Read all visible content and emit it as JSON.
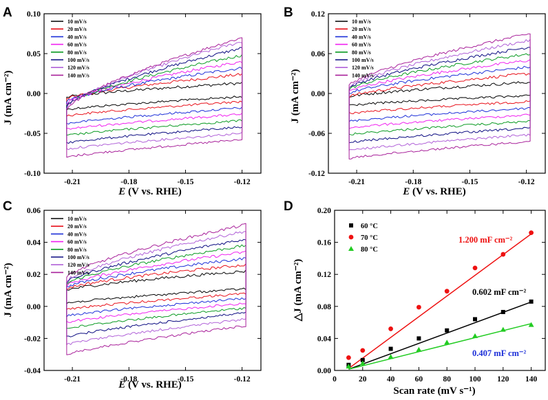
{
  "chart_data": [
    {
      "panel": "A",
      "type": "line",
      "xlabel_italic": "E",
      "xlabel_rest": " (V vs. RHE)",
      "ylabel": "J (mA cm⁻²)",
      "xlim": [
        -0.225,
        -0.11
      ],
      "ylim": [
        -0.1,
        0.1
      ],
      "xticks": [
        "-0.21",
        "-0.18",
        "-0.15",
        "-0.12"
      ],
      "yticks": [
        "-0.10",
        "-0.05",
        "0.00",
        "0.05",
        "0.10"
      ],
      "xtick_values": [
        -0.21,
        -0.18,
        -0.15,
        -0.12
      ],
      "ytick_values": [
        -0.1,
        -0.05,
        0.0,
        0.05,
        0.1
      ],
      "scan_range": [
        -0.213,
        -0.12
      ],
      "legend": [
        "10 mV/s",
        "20 mV/s",
        "40 mV/s",
        "60 mV/s",
        "80 mV/s",
        "100 mV/s",
        "120 mV/s",
        "140 mV/s"
      ],
      "colors": [
        "#000000",
        "#e8101a",
        "#1c2fd8",
        "#f020f0",
        "#0a9a22",
        "#0a0a80",
        "#b060d8",
        "#a8209a"
      ],
      "series": [
        {
          "name": "10 mV/s",
          "upper": [
            -0.005,
            0.013
          ],
          "lower": [
            -0.02,
            -0.004
          ]
        },
        {
          "name": "20 mV/s",
          "upper": [
            -0.007,
            0.024
          ],
          "lower": [
            -0.028,
            -0.01
          ]
        },
        {
          "name": "40 mV/s",
          "upper": [
            -0.01,
            0.032
          ],
          "lower": [
            -0.038,
            -0.018
          ]
        },
        {
          "name": "60 mV/s",
          "upper": [
            -0.012,
            0.04
          ],
          "lower": [
            -0.045,
            -0.026
          ]
        },
        {
          "name": "80 mV/s",
          "upper": [
            -0.014,
            0.048
          ],
          "lower": [
            -0.053,
            -0.034
          ]
        },
        {
          "name": "100 mV/s",
          "upper": [
            -0.016,
            0.057
          ],
          "lower": [
            -0.062,
            -0.042
          ]
        },
        {
          "name": "120 mV/s",
          "upper": [
            -0.018,
            0.065
          ],
          "lower": [
            -0.07,
            -0.05
          ]
        },
        {
          "name": "140 mV/s",
          "upper": [
            -0.02,
            0.07
          ],
          "lower": [
            -0.08,
            -0.058
          ]
        }
      ]
    },
    {
      "panel": "B",
      "type": "line",
      "xlabel_italic": "E",
      "xlabel_rest": " (V vs. RHE)",
      "ylabel": "J (mA cm⁻²)",
      "xlim": [
        -0.225,
        -0.11
      ],
      "ylim": [
        -0.12,
        0.12
      ],
      "xticks": [
        "-0.21",
        "-0.18",
        "-0.15",
        "-0.12"
      ],
      "yticks": [
        "-0.12",
        "-0.06",
        "0.00",
        "0.06",
        "0.12"
      ],
      "xtick_values": [
        -0.21,
        -0.18,
        -0.15,
        -0.12
      ],
      "ytick_values": [
        -0.12,
        -0.06,
        0.0,
        0.06,
        0.12
      ],
      "scan_range": [
        -0.214,
        -0.118
      ],
      "legend": [
        "10 mV/s",
        "20 mV/s",
        "40 mV/s",
        "60 mV/s",
        "80 mV/s",
        "100 mV/s",
        "120 mV/s",
        "140 mV/s"
      ],
      "colors": [
        "#000000",
        "#e8101a",
        "#1c2fd8",
        "#f020f0",
        "#0a9a22",
        "#0a0a80",
        "#b060d8",
        "#a8209a"
      ],
      "series": [
        {
          "name": "10 mV/s",
          "upper": [
            -0.005,
            0.017
          ],
          "lower": [
            -0.018,
            -0.003
          ]
        },
        {
          "name": "20 mV/s",
          "upper": [
            -0.005,
            0.03
          ],
          "lower": [
            -0.03,
            -0.012
          ]
        },
        {
          "name": "40 mV/s",
          "upper": [
            0.0,
            0.04
          ],
          "lower": [
            -0.042,
            -0.022
          ]
        },
        {
          "name": "60 mV/s",
          "upper": [
            0.003,
            0.05
          ],
          "lower": [
            -0.052,
            -0.032
          ]
        },
        {
          "name": "80 mV/s",
          "upper": [
            0.006,
            0.06
          ],
          "lower": [
            -0.062,
            -0.042
          ]
        },
        {
          "name": "100 mV/s",
          "upper": [
            0.008,
            0.07
          ],
          "lower": [
            -0.074,
            -0.052
          ]
        },
        {
          "name": "120 mV/s",
          "upper": [
            0.01,
            0.08
          ],
          "lower": [
            -0.086,
            -0.062
          ]
        },
        {
          "name": "140 mV/s",
          "upper": [
            0.012,
            0.09
          ],
          "lower": [
            -0.098,
            -0.072
          ]
        }
      ]
    },
    {
      "panel": "C",
      "type": "line",
      "xlabel_italic": "E",
      "xlabel_rest": " (V vs. RHE)",
      "ylabel": "J (mA cm⁻²)",
      "xlim": [
        -0.225,
        -0.11
      ],
      "ylim": [
        -0.04,
        0.06
      ],
      "xticks": [
        "-0.21",
        "-0.18",
        "-0.15",
        "-0.12"
      ],
      "yticks": [
        "-0.04",
        "-0.02",
        "0.00",
        "0.02",
        "0.04",
        "0.06"
      ],
      "xtick_values": [
        -0.21,
        -0.18,
        -0.15,
        -0.12
      ],
      "ytick_values": [
        -0.04,
        -0.02,
        0.0,
        0.02,
        0.04,
        0.06
      ],
      "scan_range": [
        -0.213,
        -0.118
      ],
      "legend": [
        "10 mV/s",
        "20 mV/s",
        "40 mV/s",
        "60 mV/s",
        "80 mV/s",
        "100 mV/s",
        "120 mV/s",
        "140 mV/s"
      ],
      "colors": [
        "#000000",
        "#e8101a",
        "#1c2fd8",
        "#f020f0",
        "#0a9a22",
        "#0a0a80",
        "#b060d8",
        "#a8209a"
      ],
      "series": [
        {
          "name": "10 mV/s",
          "upper": [
            0.01,
            0.022
          ],
          "lower": [
            0.002,
            0.011
          ]
        },
        {
          "name": "20 mV/s",
          "upper": [
            0.011,
            0.026
          ],
          "lower": [
            -0.002,
            0.008
          ]
        },
        {
          "name": "40 mV/s",
          "upper": [
            0.012,
            0.03
          ],
          "lower": [
            -0.006,
            0.005
          ]
        },
        {
          "name": "60 mV/s",
          "upper": [
            0.013,
            0.034
          ],
          "lower": [
            -0.01,
            0.002
          ]
        },
        {
          "name": "80 mV/s",
          "upper": [
            0.014,
            0.038
          ],
          "lower": [
            -0.014,
            -0.001
          ]
        },
        {
          "name": "100 mV/s",
          "upper": [
            0.015,
            0.042
          ],
          "lower": [
            -0.019,
            -0.004
          ]
        },
        {
          "name": "120 mV/s",
          "upper": [
            0.016,
            0.047
          ],
          "lower": [
            -0.024,
            -0.008
          ]
        },
        {
          "name": "140 mV/s",
          "upper": [
            0.018,
            0.051
          ],
          "lower": [
            -0.03,
            -0.012
          ]
        }
      ]
    },
    {
      "panel": "D",
      "type": "scatter",
      "xlabel": "Scan rate (mV s⁻¹)",
      "ylabel": "△J (mA cm⁻²)",
      "xlim": [
        0,
        150
      ],
      "ylim": [
        0.0,
        0.2
      ],
      "xticks": [
        "0",
        "20",
        "40",
        "60",
        "80",
        "100",
        "120",
        "140"
      ],
      "yticks": [
        "0.00",
        "0.04",
        "0.08",
        "0.12",
        "0.16",
        "0.20"
      ],
      "xtick_values": [
        0,
        20,
        40,
        60,
        80,
        100,
        120,
        140
      ],
      "ytick_values": [
        0.0,
        0.04,
        0.08,
        0.12,
        0.16,
        0.2
      ],
      "x": [
        10,
        20,
        40,
        60,
        80,
        100,
        120,
        140
      ],
      "series": [
        {
          "name": "60 °C",
          "marker": "square",
          "color": "#000000",
          "values": [
            0.007,
            0.013,
            0.027,
            0.04,
            0.05,
            0.064,
            0.073,
            0.086
          ],
          "fit": [
            0.0015,
            0.0855
          ],
          "annotation": "0.602 mF cm⁻²"
        },
        {
          "name": "70 °C",
          "marker": "circle",
          "color": "#ee1111",
          "values": [
            0.016,
            0.025,
            0.052,
            0.079,
            0.099,
            0.128,
            0.145,
            0.172
          ],
          "fit": [
            0.0025,
            0.1705
          ],
          "annotation": "1.200 mF cm⁻²"
        },
        {
          "name": "80 °C",
          "marker": "triangle",
          "color": "#22cc22",
          "values": [
            0.005,
            0.009,
            0.017,
            0.026,
            0.035,
            0.043,
            0.051,
            0.057
          ],
          "fit": [
            0.0015,
            0.0585
          ],
          "annotation": "0.407 mF cm⁻²"
        }
      ],
      "annotation_colors": [
        "#000000",
        "#ee1111",
        "#1c2fd8"
      ]
    }
  ]
}
